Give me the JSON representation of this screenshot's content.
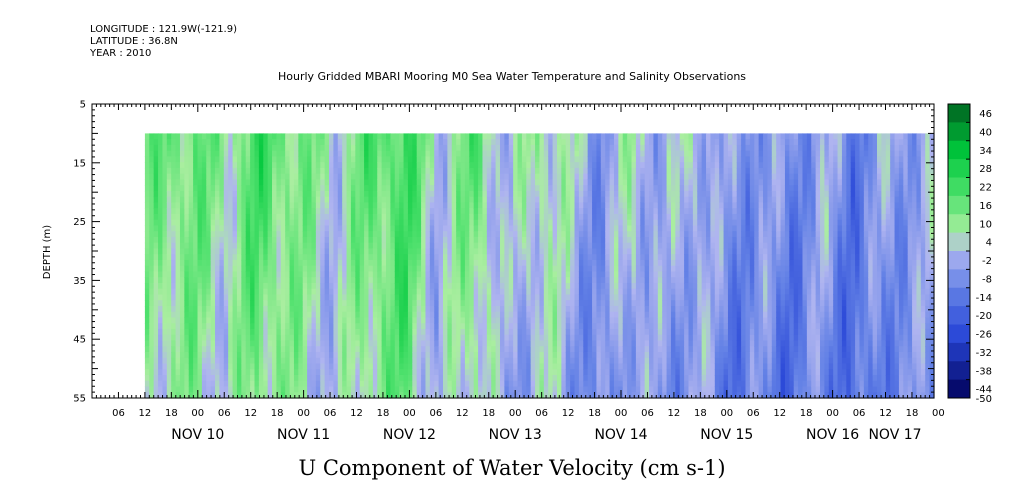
{
  "header": {
    "longitude": "LONGITUDE : 121.9W(-121.9)",
    "latitude": "LATITUDE : 36.8N",
    "year": "YEAR : 2010"
  },
  "chart_data": {
    "type": "heatmap",
    "title": "Hourly Gridded MBARI Mooring M0 Sea Water Temperature and Salinity Observations",
    "xlabel": "U Component of Water Velocity (cm s-1)",
    "ylabel": "DEPTH (m)",
    "x_range": [
      "2010-11-09T00:00",
      "2010-11-16T23:00"
    ],
    "data_x_range": [
      "2010-11-09T12:00",
      "2010-11-16T23:00"
    ],
    "y_range": [
      5,
      55
    ],
    "data_y_range": [
      10,
      55
    ],
    "y_inverted": true,
    "y_ticks": [
      5,
      15,
      25,
      35,
      45,
      55
    ],
    "x_hour_ticks": [
      "06",
      "12",
      "18",
      "00",
      "06",
      "12",
      "18",
      "00",
      "06",
      "12",
      "18",
      "00",
      "06",
      "12",
      "18",
      "00",
      "06",
      "12",
      "18",
      "00",
      "06",
      "12",
      "18",
      "00",
      "06",
      "12",
      "18",
      "00",
      "06",
      "12",
      "18",
      "00"
    ],
    "x_day_labels": [
      "NOV 10",
      "NOV 11",
      "NOV 12",
      "NOV 13",
      "NOV 14",
      "NOV 15",
      "NOV 16",
      "NOV 17"
    ],
    "colorbar": {
      "levels": [
        "46",
        "40",
        "34",
        "28",
        "22",
        "16",
        "10",
        "4",
        "-2",
        "-8",
        "-14",
        "-20",
        "-26",
        "-32",
        "-38",
        "-44",
        "-50"
      ],
      "min": -50,
      "max": 50
    },
    "field_model": [
      {
        "x": 0.0,
        "u": 10
      },
      {
        "x": 0.06,
        "u": 14
      },
      {
        "x": 0.1,
        "u": 6
      },
      {
        "x": 0.14,
        "u": 18
      },
      {
        "x": 0.2,
        "u": 10
      },
      {
        "x": 0.24,
        "u": 2
      },
      {
        "x": 0.28,
        "u": 14
      },
      {
        "x": 0.33,
        "u": 20
      },
      {
        "x": 0.37,
        "u": 0
      },
      {
        "x": 0.42,
        "u": 14
      },
      {
        "x": 0.46,
        "u": -4
      },
      {
        "x": 0.5,
        "u": 8
      },
      {
        "x": 0.55,
        "u": -2
      },
      {
        "x": 0.58,
        "u": -8
      },
      {
        "x": 0.62,
        "u": 4
      },
      {
        "x": 0.66,
        "u": -6
      },
      {
        "x": 0.7,
        "u": 2
      },
      {
        "x": 0.74,
        "u": -10
      },
      {
        "x": 0.78,
        "u": -6
      },
      {
        "x": 0.82,
        "u": -12
      },
      {
        "x": 0.86,
        "u": -4
      },
      {
        "x": 0.9,
        "u": -14
      },
      {
        "x": 0.94,
        "u": -6
      },
      {
        "x": 1.0,
        "u": -4
      }
    ]
  }
}
